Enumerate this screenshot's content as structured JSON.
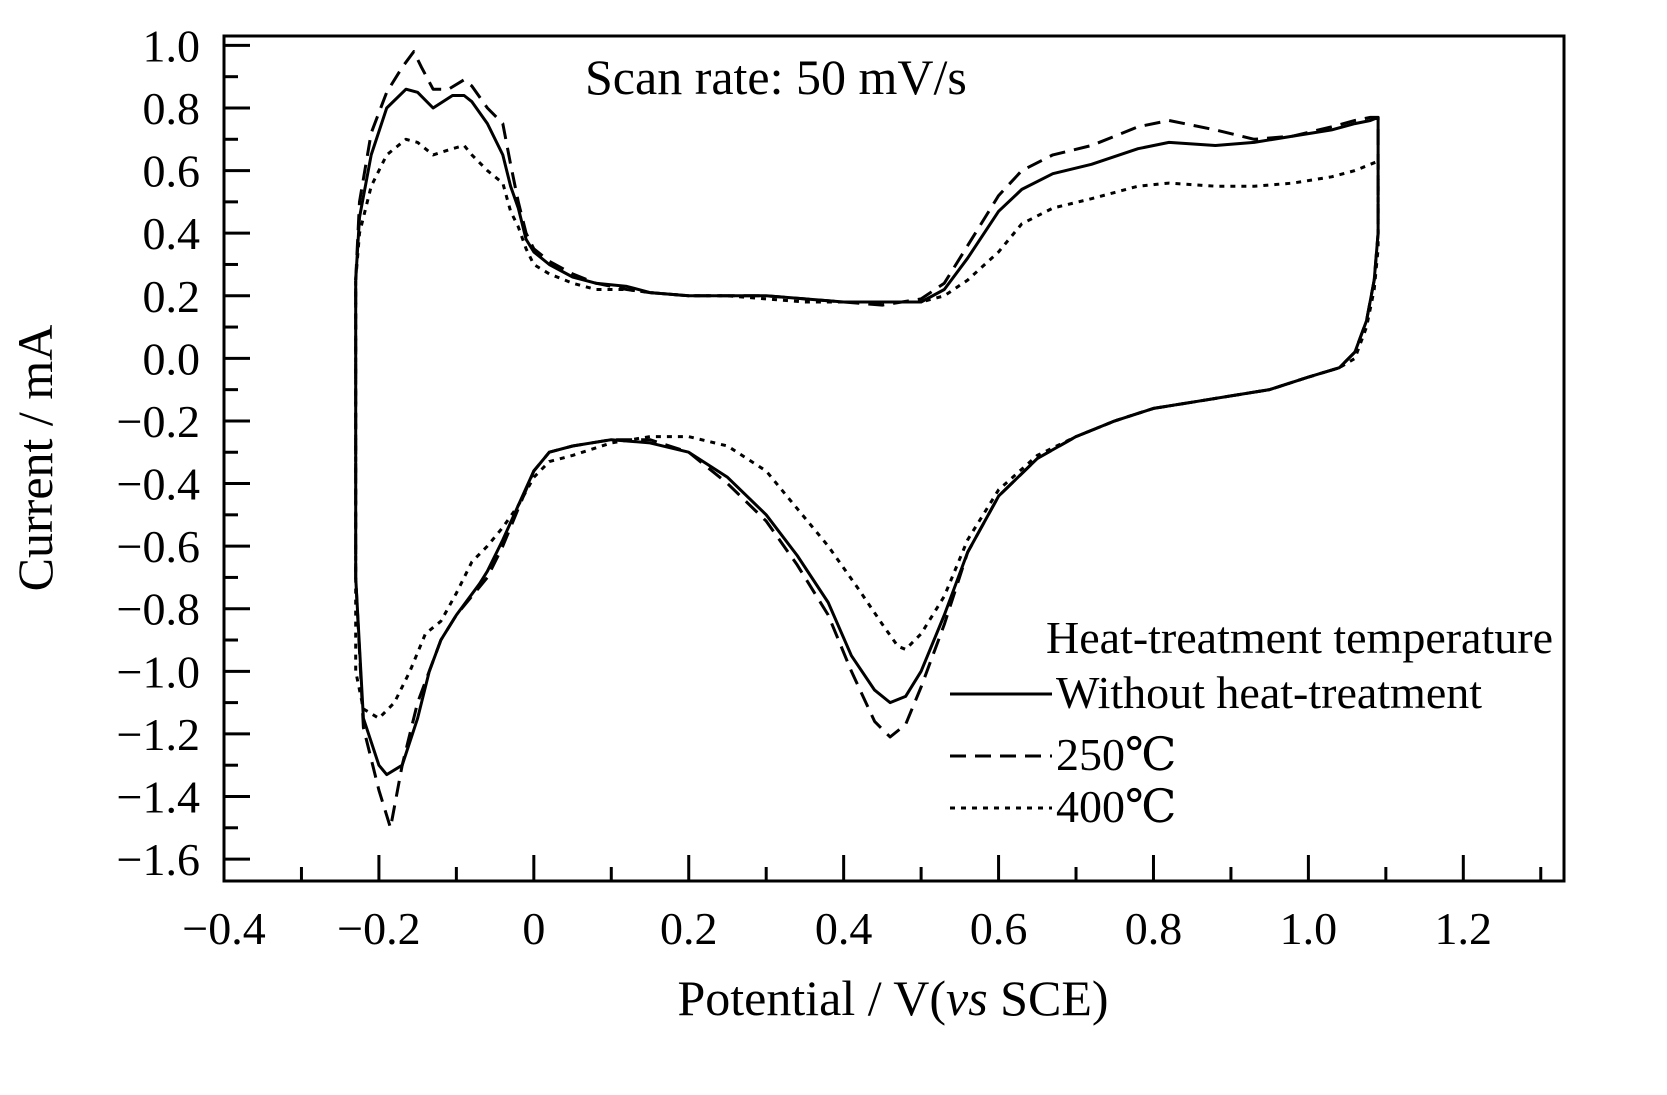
{
  "chart_data": {
    "type": "line",
    "xlabel": "Potential / V(vs SCE)",
    "xlabel_parts": [
      "Potential / V(",
      "vs",
      " SCE)"
    ],
    "ylabel": "Current / mA",
    "xlim": [
      -0.4,
      1.33
    ],
    "ylim": [
      -1.67,
      1.03
    ],
    "xticks": [
      -0.4,
      -0.2,
      0,
      0.2,
      0.4,
      0.6,
      0.8,
      1.0,
      1.2
    ],
    "xtick_labels": [
      "−0.4",
      "−0.2",
      "0",
      "0.2",
      "0.4",
      "0.6",
      "0.8",
      "1.0",
      "1.2"
    ],
    "yticks": [
      1.0,
      0.8,
      0.6,
      0.4,
      0.2,
      0.0,
      -0.2,
      -0.4,
      -0.6,
      -0.8,
      -1.0,
      -1.2,
      -1.4,
      -1.6
    ],
    "ytick_labels": [
      "1.0",
      "0.8",
      "0.6",
      "0.4",
      "0.2",
      "0.0",
      "−0.2",
      "−0.4",
      "−0.6",
      "−0.8",
      "−1.0",
      "−1.2",
      "−1.4",
      "−1.6"
    ],
    "grid": false,
    "annotation": "Scan rate: 50 mV/s",
    "legend": {
      "title": "Heat-treatment temperature",
      "placement": "bottom-right",
      "entries": [
        "Without heat-treatment",
        "250℃",
        "400℃"
      ]
    },
    "series": [
      {
        "name": "Without heat-treatment",
        "style": "solid",
        "x": [
          -0.23,
          -0.225,
          -0.21,
          -0.19,
          -0.165,
          -0.15,
          -0.13,
          -0.105,
          -0.09,
          -0.08,
          -0.06,
          -0.04,
          -0.03,
          -0.02,
          -0.01,
          0.0,
          0.02,
          0.05,
          0.08,
          0.12,
          0.15,
          0.2,
          0.25,
          0.3,
          0.35,
          0.4,
          0.45,
          0.5,
          0.53,
          0.56,
          0.6,
          0.63,
          0.67,
          0.72,
          0.78,
          0.82,
          0.88,
          0.93,
          0.98,
          1.03,
          1.06,
          1.08,
          1.09,
          1.09,
          1.09,
          1.085,
          1.075,
          1.06,
          1.04,
          1.0,
          0.95,
          0.9,
          0.85,
          0.8,
          0.75,
          0.7,
          0.65,
          0.6,
          0.56,
          0.53,
          0.5,
          0.48,
          0.46,
          0.44,
          0.41,
          0.38,
          0.34,
          0.3,
          0.25,
          0.2,
          0.15,
          0.1,
          0.05,
          0.02,
          0.0,
          -0.02,
          -0.04,
          -0.06,
          -0.07,
          -0.1,
          -0.12,
          -0.135,
          -0.15,
          -0.17,
          -0.19,
          -0.2,
          -0.22,
          -0.23,
          -0.23
        ],
        "y": [
          0.25,
          0.45,
          0.65,
          0.8,
          0.86,
          0.85,
          0.8,
          0.84,
          0.84,
          0.82,
          0.75,
          0.65,
          0.55,
          0.48,
          0.38,
          0.34,
          0.3,
          0.26,
          0.24,
          0.23,
          0.21,
          0.2,
          0.2,
          0.2,
          0.19,
          0.18,
          0.18,
          0.18,
          0.22,
          0.32,
          0.47,
          0.54,
          0.59,
          0.62,
          0.67,
          0.69,
          0.68,
          0.69,
          0.71,
          0.73,
          0.75,
          0.76,
          0.77,
          0.6,
          0.4,
          0.25,
          0.12,
          0.02,
          -0.03,
          -0.06,
          -0.1,
          -0.12,
          -0.14,
          -0.16,
          -0.2,
          -0.25,
          -0.32,
          -0.44,
          -0.62,
          -0.82,
          -1.0,
          -1.08,
          -1.1,
          -1.06,
          -0.95,
          -0.78,
          -0.63,
          -0.5,
          -0.38,
          -0.3,
          -0.27,
          -0.26,
          -0.28,
          -0.3,
          -0.36,
          -0.47,
          -0.58,
          -0.68,
          -0.72,
          -0.82,
          -0.9,
          -1.0,
          -1.15,
          -1.3,
          -1.33,
          -1.3,
          -1.15,
          -0.7,
          0.25
        ]
      },
      {
        "name": "250℃",
        "style": "dashed",
        "x": [
          -0.23,
          -0.225,
          -0.21,
          -0.19,
          -0.17,
          -0.155,
          -0.145,
          -0.13,
          -0.11,
          -0.09,
          -0.08,
          -0.06,
          -0.04,
          -0.03,
          -0.02,
          -0.01,
          0.0,
          0.02,
          0.05,
          0.08,
          0.12,
          0.15,
          0.2,
          0.25,
          0.3,
          0.35,
          0.4,
          0.45,
          0.5,
          0.53,
          0.56,
          0.6,
          0.63,
          0.67,
          0.72,
          0.78,
          0.82,
          0.88,
          0.93,
          0.98,
          1.03,
          1.06,
          1.08,
          1.09,
          1.09,
          1.09,
          1.085,
          1.075,
          1.06,
          1.04,
          1.0,
          0.95,
          0.9,
          0.85,
          0.8,
          0.75,
          0.7,
          0.65,
          0.6,
          0.56,
          0.53,
          0.5,
          0.48,
          0.46,
          0.44,
          0.41,
          0.38,
          0.34,
          0.3,
          0.25,
          0.2,
          0.15,
          0.1,
          0.05,
          0.02,
          0.0,
          -0.02,
          -0.04,
          -0.06,
          -0.08,
          -0.1,
          -0.12,
          -0.15,
          -0.17,
          -0.185,
          -0.2,
          -0.22,
          -0.23,
          -0.23
        ],
        "y": [
          0.25,
          0.5,
          0.72,
          0.85,
          0.93,
          0.98,
          0.93,
          0.86,
          0.86,
          0.89,
          0.87,
          0.8,
          0.75,
          0.62,
          0.5,
          0.4,
          0.35,
          0.31,
          0.27,
          0.24,
          0.22,
          0.21,
          0.2,
          0.2,
          0.2,
          0.19,
          0.18,
          0.17,
          0.19,
          0.24,
          0.36,
          0.52,
          0.6,
          0.65,
          0.68,
          0.74,
          0.76,
          0.73,
          0.7,
          0.71,
          0.74,
          0.76,
          0.77,
          0.77,
          0.6,
          0.4,
          0.25,
          0.12,
          0.02,
          -0.03,
          -0.06,
          -0.1,
          -0.12,
          -0.14,
          -0.16,
          -0.2,
          -0.25,
          -0.32,
          -0.44,
          -0.62,
          -0.85,
          -1.05,
          -1.17,
          -1.21,
          -1.16,
          -1.0,
          -0.82,
          -0.66,
          -0.52,
          -0.4,
          -0.3,
          -0.26,
          -0.26,
          -0.28,
          -0.3,
          -0.36,
          -0.48,
          -0.6,
          -0.7,
          -0.76,
          -0.82,
          -0.9,
          -1.1,
          -1.3,
          -1.5,
          -1.38,
          -1.18,
          -0.7,
          0.25
        ]
      },
      {
        "name": "400℃",
        "style": "dotted",
        "x": [
          -0.23,
          -0.225,
          -0.21,
          -0.19,
          -0.165,
          -0.15,
          -0.13,
          -0.105,
          -0.09,
          -0.08,
          -0.06,
          -0.04,
          -0.03,
          -0.02,
          -0.01,
          0.0,
          0.02,
          0.05,
          0.08,
          0.12,
          0.15,
          0.2,
          0.25,
          0.3,
          0.35,
          0.4,
          0.45,
          0.5,
          0.53,
          0.56,
          0.6,
          0.63,
          0.67,
          0.72,
          0.78,
          0.82,
          0.88,
          0.93,
          0.98,
          1.03,
          1.06,
          1.08,
          1.09,
          1.09,
          1.09,
          1.085,
          1.075,
          1.06,
          1.04,
          1.0,
          0.95,
          0.9,
          0.85,
          0.8,
          0.75,
          0.7,
          0.65,
          0.6,
          0.56,
          0.53,
          0.5,
          0.48,
          0.47,
          0.45,
          0.42,
          0.38,
          0.34,
          0.3,
          0.25,
          0.2,
          0.15,
          0.1,
          0.05,
          0.02,
          0.0,
          -0.02,
          -0.04,
          -0.06,
          -0.08,
          -0.1,
          -0.12,
          -0.14,
          -0.16,
          -0.18,
          -0.2,
          -0.22,
          -0.23,
          -0.23
        ],
        "y": [
          0.25,
          0.4,
          0.55,
          0.65,
          0.7,
          0.69,
          0.65,
          0.67,
          0.68,
          0.65,
          0.6,
          0.56,
          0.47,
          0.42,
          0.35,
          0.3,
          0.27,
          0.24,
          0.22,
          0.22,
          0.21,
          0.2,
          0.2,
          0.19,
          0.18,
          0.18,
          0.18,
          0.18,
          0.2,
          0.25,
          0.34,
          0.43,
          0.48,
          0.51,
          0.55,
          0.56,
          0.55,
          0.55,
          0.56,
          0.58,
          0.6,
          0.62,
          0.63,
          0.5,
          0.35,
          0.22,
          0.1,
          0.0,
          -0.03,
          -0.06,
          -0.1,
          -0.12,
          -0.14,
          -0.16,
          -0.2,
          -0.25,
          -0.31,
          -0.42,
          -0.58,
          -0.76,
          -0.88,
          -0.93,
          -0.92,
          -0.85,
          -0.74,
          -0.6,
          -0.48,
          -0.36,
          -0.28,
          -0.25,
          -0.25,
          -0.27,
          -0.31,
          -0.33,
          -0.38,
          -0.47,
          -0.54,
          -0.6,
          -0.65,
          -0.75,
          -0.84,
          -0.88,
          -1.0,
          -1.1,
          -1.15,
          -1.12,
          -1.0,
          0.25
        ]
      }
    ]
  }
}
